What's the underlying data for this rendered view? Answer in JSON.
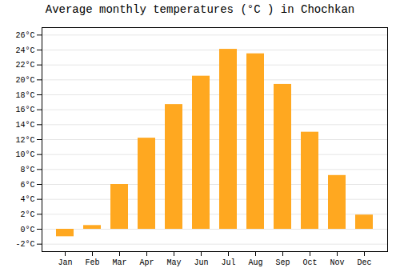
{
  "chart_data": {
    "type": "bar",
    "title": "Average monthly temperatures (°C ) in Chochkan",
    "categories": [
      "Jan",
      "Feb",
      "Mar",
      "Apr",
      "May",
      "Jun",
      "Jul",
      "Aug",
      "Sep",
      "Oct",
      "Nov",
      "Dec"
    ],
    "values": [
      -1.0,
      0.5,
      6.0,
      12.2,
      16.7,
      20.5,
      24.1,
      23.5,
      19.4,
      13.0,
      7.2,
      1.9
    ],
    "color": "#FFA820",
    "ylim": [
      -3,
      27
    ],
    "yticks": [
      {
        "value": -2,
        "label": "-2°C"
      },
      {
        "value": 0,
        "label": "0°C"
      },
      {
        "value": 2,
        "label": "2°C"
      },
      {
        "value": 4,
        "label": "4°C"
      },
      {
        "value": 6,
        "label": "6°C"
      },
      {
        "value": 8,
        "label": "8°C"
      },
      {
        "value": 10,
        "label": "10°C"
      },
      {
        "value": 12,
        "label": "12°C"
      },
      {
        "value": 14,
        "label": "14°C"
      },
      {
        "value": 16,
        "label": "16°C"
      },
      {
        "value": 18,
        "label": "18°C"
      },
      {
        "value": 20,
        "label": "20°C"
      },
      {
        "value": 22,
        "label": "22°C"
      },
      {
        "value": 24,
        "label": "24°C"
      },
      {
        "value": 26,
        "label": "26°C"
      }
    ],
    "grid": true
  }
}
